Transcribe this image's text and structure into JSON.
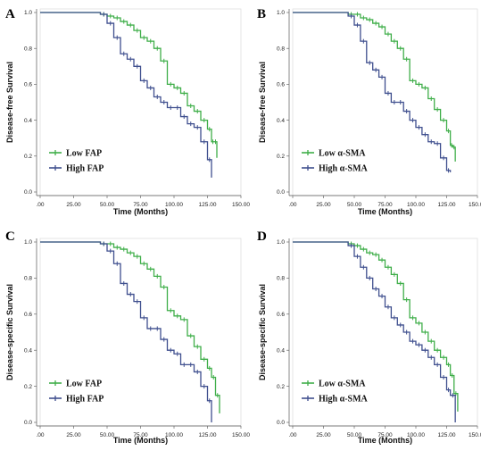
{
  "chart_data": [
    {
      "type": "line",
      "panel_label": "A",
      "xlabel": "Time (Months)",
      "ylabel": "Disease-free Survival",
      "xticks": [
        ".00",
        "25.00",
        "50.00",
        "75.00",
        "100.00",
        "125.00",
        "150.00"
      ],
      "yticks": [
        "0.0",
        "0.2",
        "0.4",
        "0.6",
        "0.8",
        "1.0"
      ],
      "xlim": [
        0,
        150
      ],
      "ylim": [
        0,
        1.0
      ],
      "legend_position": "bottom-left",
      "series": [
        {
          "name": "Low  FAP",
          "color": "#3fae49",
          "x": [
            0,
            20,
            35,
            45,
            50,
            55,
            60,
            65,
            70,
            75,
            80,
            85,
            90,
            95,
            100,
            105,
            110,
            115,
            120,
            125,
            128,
            130,
            132
          ],
          "y": [
            1.0,
            1.0,
            1.0,
            0.99,
            0.98,
            0.97,
            0.95,
            0.93,
            0.9,
            0.86,
            0.84,
            0.8,
            0.73,
            0.6,
            0.58,
            0.55,
            0.48,
            0.45,
            0.4,
            0.35,
            0.28,
            0.28,
            0.19
          ]
        },
        {
          "name": "High FAP",
          "color": "#3f4f8e",
          "x": [
            0,
            20,
            35,
            45,
            50,
            55,
            60,
            65,
            70,
            75,
            80,
            85,
            90,
            95,
            100,
            105,
            110,
            115,
            120,
            125,
            128
          ],
          "y": [
            1.0,
            1.0,
            1.0,
            0.99,
            0.94,
            0.86,
            0.77,
            0.74,
            0.7,
            0.62,
            0.58,
            0.53,
            0.5,
            0.47,
            0.47,
            0.42,
            0.38,
            0.36,
            0.28,
            0.18,
            0.08
          ]
        }
      ]
    },
    {
      "type": "line",
      "panel_label": "B",
      "xlabel": "Time (Months)",
      "ylabel": "Disease-free Survival",
      "xticks": [
        ".00",
        "25.00",
        "50.00",
        "75.00",
        "100.00",
        "125.00",
        "150.00"
      ],
      "yticks": [
        "0.0",
        "0.2",
        "0.4",
        "0.6",
        "0.8",
        "1.0"
      ],
      "xlim": [
        0,
        150
      ],
      "ylim": [
        0,
        1.0
      ],
      "legend_position": "bottom-left",
      "series": [
        {
          "name": "Low  α-SMA",
          "color": "#3fae49",
          "x": [
            0,
            20,
            35,
            45,
            50,
            55,
            60,
            65,
            70,
            75,
            80,
            85,
            90,
            95,
            100,
            105,
            110,
            115,
            120,
            125,
            128,
            130,
            132
          ],
          "y": [
            1.0,
            1.0,
            1.0,
            0.99,
            0.99,
            0.97,
            0.96,
            0.94,
            0.92,
            0.88,
            0.84,
            0.8,
            0.74,
            0.62,
            0.6,
            0.58,
            0.52,
            0.46,
            0.4,
            0.34,
            0.26,
            0.25,
            0.17
          ]
        },
        {
          "name": "High α-SMA",
          "color": "#3f4f8e",
          "x": [
            0,
            20,
            35,
            45,
            50,
            55,
            60,
            65,
            70,
            75,
            80,
            85,
            90,
            95,
            100,
            105,
            110,
            115,
            120,
            125,
            128
          ],
          "y": [
            1.0,
            1.0,
            1.0,
            0.98,
            0.93,
            0.84,
            0.72,
            0.68,
            0.64,
            0.55,
            0.5,
            0.5,
            0.45,
            0.4,
            0.36,
            0.32,
            0.28,
            0.27,
            0.19,
            0.12,
            0.11
          ]
        }
      ]
    },
    {
      "type": "line",
      "panel_label": "C",
      "xlabel": "Time (Months)",
      "ylabel": "Disease-specific Survival",
      "xticks": [
        ".00",
        "25.00",
        "50.00",
        "75.00",
        "100.00",
        "125.00",
        "150.00"
      ],
      "yticks": [
        "0.0",
        "0.2",
        "0.4",
        "0.6",
        "0.8",
        "1.0"
      ],
      "xlim": [
        0,
        150
      ],
      "ylim": [
        0,
        1.0
      ],
      "legend_position": "bottom-left",
      "series": [
        {
          "name": "Low  FAP",
          "color": "#3fae49",
          "x": [
            0,
            20,
            35,
            45,
            50,
            55,
            60,
            65,
            70,
            75,
            80,
            85,
            90,
            95,
            100,
            105,
            110,
            115,
            120,
            125,
            128,
            131,
            134
          ],
          "y": [
            1.0,
            1.0,
            1.0,
            0.99,
            0.99,
            0.97,
            0.96,
            0.94,
            0.92,
            0.88,
            0.85,
            0.81,
            0.75,
            0.62,
            0.59,
            0.57,
            0.48,
            0.42,
            0.35,
            0.3,
            0.25,
            0.15,
            0.05
          ]
        },
        {
          "name": "High FAP",
          "color": "#3f4f8e",
          "x": [
            0,
            20,
            35,
            45,
            50,
            55,
            60,
            65,
            70,
            75,
            80,
            85,
            90,
            95,
            100,
            105,
            110,
            115,
            120,
            125,
            128
          ],
          "y": [
            1.0,
            1.0,
            1.0,
            0.99,
            0.95,
            0.88,
            0.77,
            0.71,
            0.67,
            0.58,
            0.52,
            0.52,
            0.46,
            0.4,
            0.38,
            0.32,
            0.32,
            0.28,
            0.2,
            0.12,
            0.0
          ]
        }
      ]
    },
    {
      "type": "line",
      "panel_label": "D",
      "xlabel": "Time (Months)",
      "ylabel": "Disease-specific Survival",
      "xticks": [
        ".00",
        "25.00",
        "50.00",
        "75.00",
        "100.00",
        "125.00",
        "150.00"
      ],
      "yticks": [
        "0.0",
        "0.2",
        "0.4",
        "0.6",
        "0.8",
        "1.0"
      ],
      "xlim": [
        0,
        150
      ],
      "ylim": [
        0,
        1.0
      ],
      "legend_position": "bottom-left",
      "series": [
        {
          "name": "Low  α-SMA",
          "color": "#3fae49",
          "x": [
            0,
            20,
            35,
            45,
            50,
            55,
            60,
            65,
            70,
            75,
            80,
            85,
            90,
            95,
            100,
            105,
            110,
            115,
            120,
            125,
            128,
            131,
            134
          ],
          "y": [
            1.0,
            1.0,
            1.0,
            0.99,
            0.98,
            0.96,
            0.94,
            0.93,
            0.9,
            0.86,
            0.82,
            0.77,
            0.68,
            0.58,
            0.55,
            0.5,
            0.45,
            0.4,
            0.36,
            0.32,
            0.26,
            0.16,
            0.06
          ]
        },
        {
          "name": "High α-SMA",
          "color": "#3f4f8e",
          "x": [
            0,
            20,
            35,
            45,
            50,
            55,
            60,
            65,
            70,
            75,
            80,
            85,
            90,
            95,
            100,
            105,
            110,
            115,
            120,
            125,
            128,
            132
          ],
          "y": [
            1.0,
            1.0,
            1.0,
            0.98,
            0.92,
            0.86,
            0.8,
            0.74,
            0.7,
            0.64,
            0.58,
            0.54,
            0.5,
            0.45,
            0.43,
            0.4,
            0.36,
            0.32,
            0.25,
            0.18,
            0.15,
            0.0
          ]
        }
      ]
    }
  ]
}
